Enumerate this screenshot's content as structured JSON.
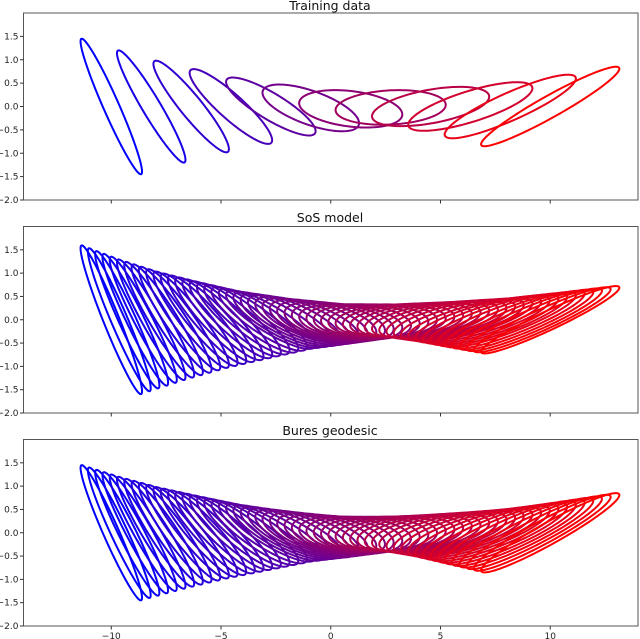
{
  "chart_data": [
    {
      "type": "line",
      "title": "Training data",
      "xlim": [
        -14,
        14
      ],
      "ylim": [
        -2.0,
        2.0
      ],
      "x_ticks": [
        -10,
        -5,
        0,
        5,
        10
      ],
      "y_ticks": [
        "-2.0",
        "-1.5",
        "-1.0",
        "-0.5",
        "0.0",
        "0.5",
        "1.0",
        "1.5"
      ],
      "show_x_tick_labels": false,
      "grid": false,
      "color_start": "#0000ff",
      "color_end": "#ff0000",
      "curve_shape": "ellipse",
      "ellipses": [
        {
          "cx": -10.0,
          "cy": 0.0,
          "x_halfwidth": 1.4,
          "y_halfheight": 1.45,
          "rho": -0.96
        },
        {
          "cx": -8.18,
          "cy": 0.0,
          "x_halfwidth": 1.56,
          "y_halfheight": 1.2,
          "rho": -0.95
        },
        {
          "cx": -6.36,
          "cy": 0.0,
          "x_halfwidth": 1.72,
          "y_halfheight": 0.98,
          "rho": -0.93
        },
        {
          "cx": -4.55,
          "cy": 0.0,
          "x_halfwidth": 1.88,
          "y_halfheight": 0.8,
          "rho": -0.9
        },
        {
          "cx": -2.73,
          "cy": 0.0,
          "x_halfwidth": 2.04,
          "y_halfheight": 0.62,
          "rho": -0.85
        },
        {
          "cx": -0.91,
          "cy": -0.03,
          "x_halfwidth": 2.2,
          "y_halfheight": 0.5,
          "rho": -0.65
        },
        {
          "cx": 0.91,
          "cy": -0.05,
          "x_halfwidth": 2.35,
          "y_halfheight": 0.4,
          "rho": -0.3
        },
        {
          "cx": 2.73,
          "cy": -0.02,
          "x_halfwidth": 2.51,
          "y_halfheight": 0.37,
          "rho": 0.15
        },
        {
          "cx": 4.55,
          "cy": 0.0,
          "x_halfwidth": 2.67,
          "y_halfheight": 0.42,
          "rho": 0.5
        },
        {
          "cx": 6.36,
          "cy": 0.0,
          "x_halfwidth": 2.83,
          "y_halfheight": 0.52,
          "rho": 0.75
        },
        {
          "cx": 8.18,
          "cy": 0.0,
          "x_halfwidth": 2.99,
          "y_halfheight": 0.68,
          "rho": 0.88
        },
        {
          "cx": 10.0,
          "cy": 0.0,
          "x_halfwidth": 3.15,
          "y_halfheight": 0.85,
          "rho": 0.95
        }
      ]
    },
    {
      "type": "line",
      "title": "SoS model",
      "xlim": [
        -14,
        14
      ],
      "ylim": [
        -2.0,
        2.0
      ],
      "x_ticks": [
        -10,
        -5,
        0,
        5,
        10
      ],
      "y_ticks": [
        "-2.0",
        "-1.5",
        "-1.0",
        "-0.5",
        "0.0",
        "0.5",
        "1.0",
        "1.5"
      ],
      "show_x_tick_labels": false,
      "grid": false,
      "color_start": "#0000ff",
      "color_end": "#ff0000",
      "curve_shape": "ellipse",
      "n_curves": 56,
      "interpolates": "Training data"
    },
    {
      "type": "line",
      "title": "Bures geodesic",
      "xlim": [
        -14,
        14
      ],
      "ylim": [
        -2.0,
        2.0
      ],
      "x_ticks": [
        -10,
        -5,
        0,
        5,
        10
      ],
      "x_tick_labels": [
        "−10",
        "−5",
        "0",
        "5",
        "10"
      ],
      "y_ticks": [
        "-2.0",
        "-1.5",
        "-1.0",
        "-0.5",
        "0.0",
        "0.5",
        "1.0",
        "1.5"
      ],
      "show_x_tick_labels": true,
      "grid": false,
      "color_start": "#0000ff",
      "color_end": "#ff0000",
      "curve_shape": "ellipse",
      "n_curves": 56,
      "interpolates": "Training data"
    }
  ]
}
